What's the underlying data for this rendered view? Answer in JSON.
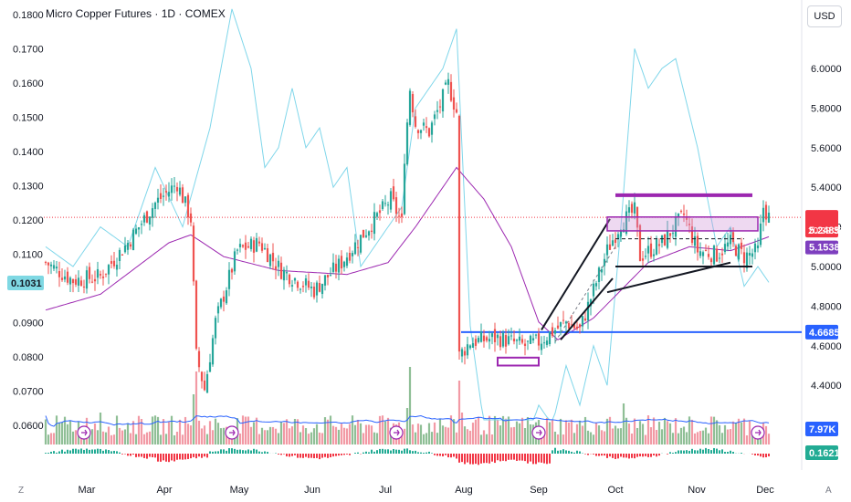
{
  "header": {
    "title": "Micro Copper Futures · 1D · COMEX",
    "currency": "USD"
  },
  "footer": {
    "left_glyph": "Z",
    "right_glyph": "A"
  },
  "colors": {
    "up": "#26a69a",
    "down": "#ef5350",
    "ma": "#9c27b0",
    "cyan": "#7fd6ea",
    "volume_ma": "#2962ff",
    "hline": "#2962ff",
    "last_price": "#f23645",
    "purple_tag": "#7e3fbf",
    "teal_tag": "#7fd8e3",
    "green_tag": "#22ab94"
  },
  "chart_data": {
    "type": "candlestick",
    "title": "Micro Copper Futures · 1D · COMEX",
    "x_ticks": [
      "Mar",
      "Apr",
      "May",
      "Jun",
      "Jul",
      "Aug",
      "Sep",
      "Oct",
      "Nov",
      "Dec"
    ],
    "left_axis": {
      "ticks": [
        "0.1800",
        "0.1700",
        "0.1600",
        "0.1500",
        "0.1400",
        "0.1300",
        "0.1200",
        "0.1100",
        "0.0900",
        "0.0800",
        "0.0700",
        "0.0600"
      ],
      "tag": "0.1031"
    },
    "right_axis": {
      "range": [
        4.2,
        6.3
      ],
      "ticks": [
        "6.0000",
        "5.8000",
        "5.6000",
        "5.4000",
        "5.2000",
        "5.0000",
        "4.8000",
        "4.6000",
        "4.4000"
      ],
      "tags": {
        "last_price": "5.2485",
        "countdown": "20:38:36",
        "ma": "5.1538",
        "hline": "4.6685",
        "volume": "7.97K",
        "oscillator": "0.1621"
      }
    },
    "price_anchors": [
      [
        0,
        5.02
      ],
      [
        10,
        4.93
      ],
      [
        20,
        4.95
      ],
      [
        30,
        5.12
      ],
      [
        40,
        5.32
      ],
      [
        48,
        5.42
      ],
      [
        53,
        5.24
      ],
      [
        55,
        4.55
      ],
      [
        58,
        4.38
      ],
      [
        62,
        4.72
      ],
      [
        70,
        5.08
      ],
      [
        78,
        5.12
      ],
      [
        86,
        4.98
      ],
      [
        98,
        4.88
      ],
      [
        108,
        5.02
      ],
      [
        118,
        5.2
      ],
      [
        126,
        5.34
      ],
      [
        130,
        5.22
      ],
      [
        131,
        5.56
      ],
      [
        133,
        5.9
      ],
      [
        135,
        5.72
      ],
      [
        140,
        5.68
      ],
      [
        147,
        5.92
      ],
      [
        150,
        5.78
      ],
      [
        151,
        4.55
      ],
      [
        155,
        4.62
      ],
      [
        165,
        4.64
      ],
      [
        175,
        4.6
      ],
      [
        180,
        4.62
      ],
      [
        190,
        4.72
      ],
      [
        195,
        4.68
      ],
      [
        205,
        5.08
      ],
      [
        210,
        5.22
      ],
      [
        215,
        5.28
      ],
      [
        217,
        5.05
      ],
      [
        225,
        5.12
      ],
      [
        233,
        5.26
      ],
      [
        238,
        5.08
      ],
      [
        245,
        5.06
      ],
      [
        250,
        5.12
      ],
      [
        255,
        5.05
      ],
      [
        260,
        5.08
      ],
      [
        262,
        5.3
      ],
      [
        264,
        5.25
      ]
    ],
    "ma_anchors": [
      [
        0,
        4.78
      ],
      [
        20,
        4.86
      ],
      [
        45,
        5.12
      ],
      [
        53,
        5.16
      ],
      [
        65,
        5.05
      ],
      [
        85,
        4.98
      ],
      [
        110,
        4.96
      ],
      [
        125,
        5.02
      ],
      [
        135,
        5.2
      ],
      [
        150,
        5.5
      ],
      [
        160,
        5.34
      ],
      [
        170,
        5.1
      ],
      [
        180,
        4.72
      ],
      [
        187,
        4.63
      ],
      [
        200,
        4.74
      ],
      [
        220,
        5.02
      ],
      [
        235,
        5.1
      ],
      [
        250,
        5.08
      ],
      [
        264,
        5.15
      ]
    ],
    "cyan_anchors": [
      [
        0,
        5.1
      ],
      [
        10,
        5.0
      ],
      [
        20,
        5.2
      ],
      [
        30,
        5.1
      ],
      [
        40,
        5.5
      ],
      [
        50,
        5.2
      ],
      [
        60,
        5.7
      ],
      [
        68,
        6.3
      ],
      [
        75,
        6.0
      ],
      [
        80,
        5.5
      ],
      [
        85,
        5.6
      ],
      [
        90,
        5.9
      ],
      [
        95,
        5.6
      ],
      [
        100,
        5.7
      ],
      [
        105,
        5.4
      ],
      [
        110,
        5.5
      ],
      [
        115,
        5.0
      ],
      [
        120,
        5.1
      ],
      [
        130,
        5.3
      ],
      [
        135,
        5.8
      ],
      [
        140,
        5.9
      ],
      [
        145,
        6.0
      ],
      [
        150,
        6.2
      ],
      [
        155,
        4.7
      ],
      [
        160,
        4.2
      ],
      [
        170,
        4.0
      ],
      [
        175,
        4.1
      ],
      [
        180,
        4.3
      ],
      [
        185,
        4.2
      ],
      [
        190,
        4.5
      ],
      [
        195,
        4.3
      ],
      [
        200,
        4.6
      ],
      [
        205,
        4.4
      ],
      [
        210,
        5.2
      ],
      [
        215,
        6.1
      ],
      [
        220,
        5.9
      ],
      [
        225,
        6.0
      ],
      [
        230,
        6.05
      ],
      [
        238,
        5.6
      ],
      [
        245,
        5.1
      ],
      [
        250,
        5.2
      ],
      [
        255,
        4.9
      ],
      [
        260,
        5.0
      ],
      [
        264,
        4.92
      ]
    ],
    "hline": 4.6685,
    "drawings": {
      "parallel_channel": [
        [
          [
            181,
            4.68
          ],
          [
            206,
            5.24
          ]
        ],
        [
          [
            188,
            4.63
          ],
          [
            207,
            4.94
          ]
        ],
        [
          [
            186,
            4.62
          ],
          [
            208,
            5.1
          ]
        ]
      ],
      "support_upper": [
        [
          208,
          5.36
        ],
        [
          258,
          5.36
        ]
      ],
      "support_lower": [
        [
          208,
          5.0
        ],
        [
          258,
          5.0
        ]
      ],
      "wedge_low": [
        [
          205,
          4.87
        ],
        [
          250,
          5.02
        ]
      ],
      "box": [
        [
          205,
          5.18
        ],
        [
          260,
          5.25
        ]
      ],
      "mid_line": [
        [
          208,
          5.14
        ],
        [
          255,
          5.14
        ]
      ],
      "small_box": [
        [
          165,
          4.5
        ],
        [
          180,
          4.54
        ]
      ]
    }
  }
}
